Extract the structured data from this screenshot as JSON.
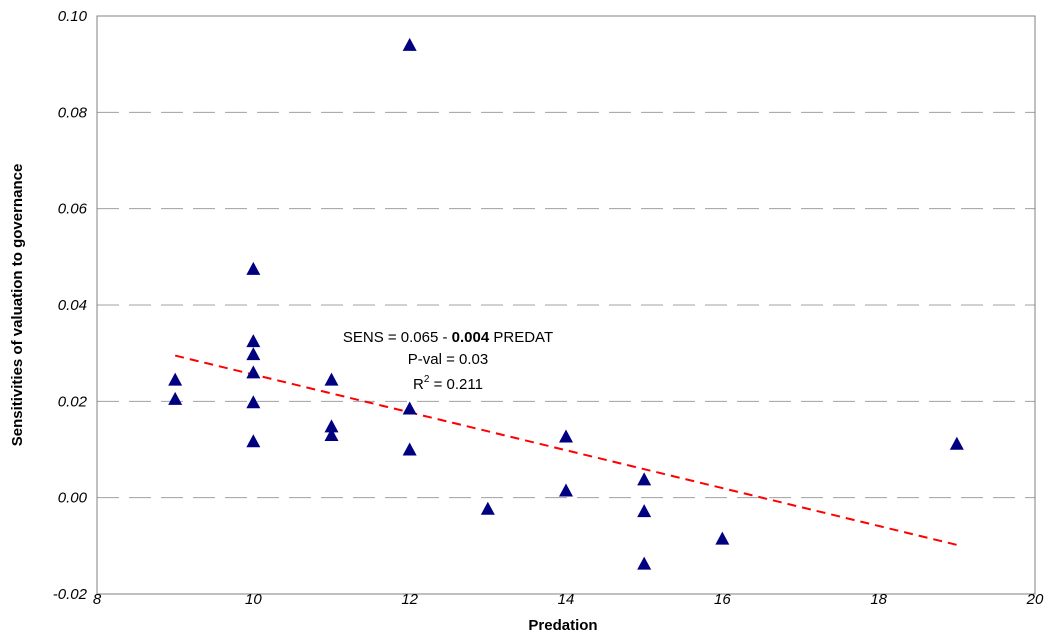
{
  "chart_data": {
    "type": "scatter",
    "title": "",
    "xlabel": "Predation",
    "ylabel": "Sensitivities of valuation to governance",
    "xlim": [
      8,
      20
    ],
    "ylim": [
      -0.02,
      0.1
    ],
    "x_ticks": [
      "8",
      "10",
      "12",
      "14",
      "16",
      "18",
      "20"
    ],
    "y_ticks": [
      "-0.02",
      "0.00",
      "0.02",
      "0.04",
      "0.06",
      "0.08",
      "0.10"
    ],
    "grid": "horizontal dashed",
    "marker": "triangle",
    "marker_color": "#000080",
    "points": [
      {
        "x": 9,
        "y": 0.0245
      },
      {
        "x": 9,
        "y": 0.0205
      },
      {
        "x": 10,
        "y": 0.0475
      },
      {
        "x": 10,
        "y": 0.0325
      },
      {
        "x": 10,
        "y": 0.0298
      },
      {
        "x": 10,
        "y": 0.026
      },
      {
        "x": 10,
        "y": 0.0198
      },
      {
        "x": 10,
        "y": 0.0117
      },
      {
        "x": 11,
        "y": 0.0245
      },
      {
        "x": 11,
        "y": 0.0148
      },
      {
        "x": 11,
        "y": 0.013
      },
      {
        "x": 12,
        "y": 0.094
      },
      {
        "x": 12,
        "y": 0.0185
      },
      {
        "x": 12,
        "y": 0.01
      },
      {
        "x": 13,
        "y": -0.0023
      },
      {
        "x": 14,
        "y": 0.0127
      },
      {
        "x": 14,
        "y": 0.0015
      },
      {
        "x": 15,
        "y": 0.0038
      },
      {
        "x": 15,
        "y": -0.0028
      },
      {
        "x": 15,
        "y": -0.0137
      },
      {
        "x": 16,
        "y": -0.0085
      },
      {
        "x": 19,
        "y": 0.0112
      }
    ],
    "trendline": {
      "color": "#ff0000",
      "style": "dashed",
      "x": [
        9,
        19
      ],
      "y": [
        0.0295,
        -0.0098
      ]
    },
    "annotation": {
      "line1_pre": "SENS = 0.065 - ",
      "line1_bold": "0.004",
      "line1_post": " PREDAT",
      "line2": "P-val = 0.03",
      "line3_pre": "R",
      "line3_sup": "2",
      "line3_post": " = 0.211"
    }
  }
}
